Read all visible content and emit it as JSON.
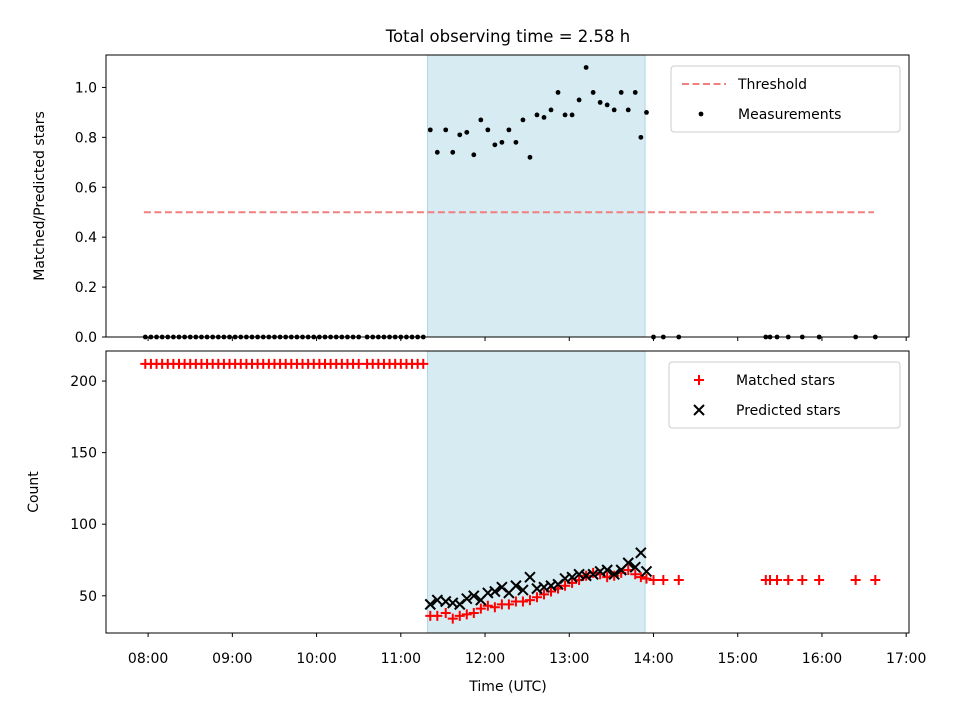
{
  "title": "Total observing time = 2.58 h",
  "xlabel": "Time (UTC)",
  "x_ticks": [
    "08:00",
    "09:00",
    "10:00",
    "11:00",
    "12:00",
    "13:00",
    "14:00",
    "15:00",
    "16:00",
    "17:00"
  ],
  "colors": {
    "band": "#add8e6",
    "threshold": "#f08080",
    "matched": "#ff0000",
    "predicted": "#000000",
    "measurement": "#000000"
  },
  "chart_data": [
    {
      "type": "scatter",
      "ylabel": "Matched/Predicted stars",
      "xlim": [
        "07:30",
        "17:02"
      ],
      "ylim": [
        0,
        1.13
      ],
      "y_ticks": [
        0.0,
        0.2,
        0.4,
        0.6,
        0.8,
        1.0
      ],
      "y_tick_labels": [
        "0.0",
        "0.2",
        "0.4",
        "0.6",
        "0.8",
        "1.0"
      ],
      "legend": {
        "position": "upper right",
        "entries": [
          "Threshold",
          "Measurements"
        ]
      },
      "shaded_span": [
        "11:19",
        "13:54"
      ],
      "threshold": {
        "name": "Threshold",
        "y": 0.5,
        "x_start": "07:57",
        "x_end": "16:37",
        "style": "dashed"
      },
      "measurements": {
        "name": "Measurements",
        "x": [
          "07:58",
          "08:02",
          "08:06",
          "08:10",
          "08:14",
          "08:18",
          "08:22",
          "08:26",
          "08:30",
          "08:34",
          "08:38",
          "08:42",
          "08:46",
          "08:50",
          "08:54",
          "08:58",
          "09:02",
          "09:06",
          "09:10",
          "09:14",
          "09:18",
          "09:22",
          "09:26",
          "09:30",
          "09:34",
          "09:38",
          "09:42",
          "09:46",
          "09:50",
          "09:54",
          "09:58",
          "10:02",
          "10:06",
          "10:10",
          "10:14",
          "10:18",
          "10:22",
          "10:26",
          "10:30",
          "10:36",
          "10:40",
          "10:44",
          "10:48",
          "10:52",
          "10:56",
          "11:00",
          "11:04",
          "11:08",
          "11:12",
          "11:16",
          "11:21",
          "11:26",
          "11:32",
          "11:37",
          "11:42",
          "11:47",
          "11:52",
          "11:57",
          "12:02",
          "12:07",
          "12:12",
          "12:17",
          "12:22",
          "12:27",
          "12:32",
          "12:37",
          "12:42",
          "12:47",
          "12:52",
          "12:57",
          "13:02",
          "13:07",
          "13:12",
          "13:17",
          "13:22",
          "13:27",
          "13:32",
          "13:37",
          "13:42",
          "13:47",
          "13:51",
          "13:55",
          "14:00",
          "14:07",
          "14:18",
          "15:20",
          "15:23",
          "15:28",
          "15:36",
          "15:46",
          "15:58",
          "16:24",
          "16:38"
        ],
        "y": [
          0,
          0,
          0,
          0,
          0,
          0,
          0,
          0,
          0,
          0,
          0,
          0,
          0,
          0,
          0,
          0,
          0,
          0,
          0,
          0,
          0,
          0,
          0,
          0,
          0,
          0,
          0,
          0,
          0,
          0,
          0,
          0,
          0,
          0,
          0,
          0,
          0,
          0,
          0,
          0,
          0,
          0,
          0,
          0,
          0,
          0,
          0,
          0,
          0,
          0,
          0.83,
          0.74,
          0.83,
          0.74,
          0.81,
          0.82,
          0.73,
          0.87,
          0.83,
          0.77,
          0.78,
          0.83,
          0.78,
          0.87,
          0.72,
          0.89,
          0.88,
          0.91,
          0.98,
          0.89,
          0.89,
          0.95,
          1.08,
          0.98,
          0.94,
          0.93,
          0.91,
          0.98,
          0.91,
          0.98,
          0.8,
          0.9,
          0,
          0,
          0,
          0,
          0,
          0,
          0,
          0,
          0,
          0,
          0
        ]
      }
    },
    {
      "type": "scatter",
      "ylabel": "Count",
      "xlim": [
        "07:30",
        "17:02"
      ],
      "ylim": [
        24,
        221
      ],
      "y_ticks": [
        50,
        100,
        150,
        200
      ],
      "y_tick_labels": [
        "50",
        "100",
        "150",
        "200"
      ],
      "legend": {
        "position": "upper right",
        "entries": [
          "Matched stars",
          "Predicted stars"
        ]
      },
      "shaded_span": [
        "11:19",
        "13:54"
      ],
      "series": [
        {
          "name": "Matched stars",
          "marker": "+",
          "x": [
            "07:58",
            "08:02",
            "08:06",
            "08:10",
            "08:14",
            "08:18",
            "08:22",
            "08:26",
            "08:30",
            "08:34",
            "08:38",
            "08:42",
            "08:46",
            "08:50",
            "08:54",
            "08:58",
            "09:02",
            "09:06",
            "09:10",
            "09:14",
            "09:18",
            "09:22",
            "09:26",
            "09:30",
            "09:34",
            "09:38",
            "09:42",
            "09:46",
            "09:50",
            "09:54",
            "09:58",
            "10:02",
            "10:06",
            "10:10",
            "10:14",
            "10:18",
            "10:22",
            "10:26",
            "10:30",
            "10:36",
            "10:40",
            "10:44",
            "10:48",
            "10:52",
            "10:56",
            "11:00",
            "11:04",
            "11:08",
            "11:12",
            "11:16",
            "11:21",
            "11:26",
            "11:32",
            "11:37",
            "11:42",
            "11:47",
            "11:52",
            "11:57",
            "12:02",
            "12:07",
            "12:12",
            "12:17",
            "12:22",
            "12:27",
            "12:32",
            "12:37",
            "12:42",
            "12:47",
            "12:52",
            "12:57",
            "13:02",
            "13:07",
            "13:12",
            "13:17",
            "13:22",
            "13:27",
            "13:32",
            "13:37",
            "13:42",
            "13:47",
            "13:51",
            "13:55",
            "14:00",
            "14:07",
            "14:18",
            "15:20",
            "15:23",
            "15:28",
            "15:36",
            "15:46",
            "15:58",
            "16:24",
            "16:38"
          ],
          "y": [
            212,
            212,
            212,
            212,
            212,
            212,
            212,
            212,
            212,
            212,
            212,
            212,
            212,
            212,
            212,
            212,
            212,
            212,
            212,
            212,
            212,
            212,
            212,
            212,
            212,
            212,
            212,
            212,
            212,
            212,
            212,
            212,
            212,
            212,
            212,
            212,
            212,
            212,
            212,
            212,
            212,
            212,
            212,
            212,
            212,
            212,
            212,
            212,
            212,
            212,
            36,
            36,
            38,
            34,
            36,
            37,
            38,
            41,
            43,
            42,
            44,
            44,
            46,
            46,
            47,
            49,
            51,
            53,
            55,
            57,
            59,
            61,
            64,
            66,
            65,
            63,
            64,
            66,
            68,
            65,
            63,
            62,
            61,
            61,
            61,
            61,
            61,
            61,
            61,
            61,
            61,
            61,
            61
          ]
        },
        {
          "name": "Predicted stars",
          "marker": "x",
          "x": [
            "11:21",
            "11:26",
            "11:32",
            "11:37",
            "11:42",
            "11:47",
            "11:52",
            "11:57",
            "12:02",
            "12:07",
            "12:12",
            "12:17",
            "12:22",
            "12:27",
            "12:32",
            "12:37",
            "12:42",
            "12:47",
            "12:52",
            "12:57",
            "13:02",
            "13:07",
            "13:12",
            "13:17",
            "13:22",
            "13:27",
            "13:32",
            "13:37",
            "13:42",
            "13:47",
            "13:51",
            "13:55"
          ],
          "y": [
            44,
            47,
            46,
            45,
            44,
            48,
            50,
            47,
            52,
            53,
            56,
            52,
            57,
            54,
            63,
            55,
            56,
            57,
            58,
            62,
            63,
            65,
            64,
            65,
            67,
            68,
            65,
            68,
            73,
            70,
            80,
            67
          ]
        }
      ]
    }
  ]
}
